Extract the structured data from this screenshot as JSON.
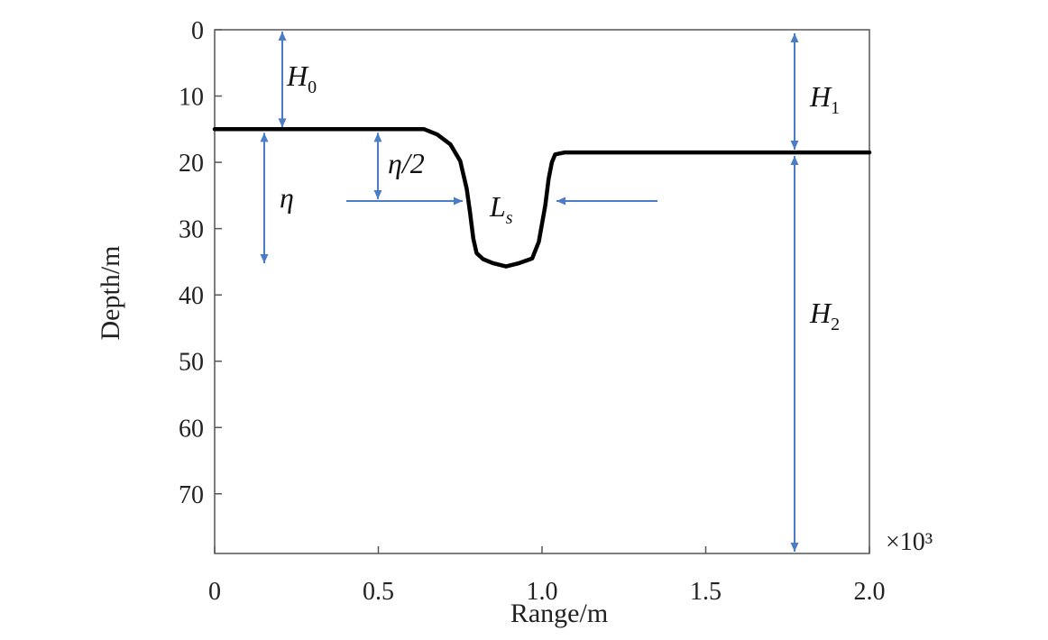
{
  "chart_data": {
    "type": "line",
    "title": "",
    "xlabel": "Range/m",
    "ylabel": "Depth/m",
    "x_multiplier": "×10³",
    "xlim": [
      0,
      2.0
    ],
    "ylim": [
      0,
      79
    ],
    "y_inverted": true,
    "grid": false,
    "x_ticks": [
      0,
      0.5,
      1.0,
      1.5,
      2.0
    ],
    "x_tick_labels": [
      "0",
      "0.5",
      "1.0",
      "1.5",
      "2.0"
    ],
    "y_ticks": [
      0,
      10,
      20,
      30,
      40,
      50,
      60,
      70
    ],
    "y_tick_labels": [
      "0",
      "10",
      "20",
      "30",
      "40",
      "50",
      "60",
      "70"
    ],
    "series": [
      {
        "color": "#000000",
        "x": [
          0,
          0.64,
          0.68,
          0.72,
          0.75,
          0.77,
          0.78,
          0.79,
          0.8,
          0.82,
          0.85,
          0.89,
          0.93,
          0.97,
          0.99,
          1.01,
          1.02,
          1.03,
          1.04,
          1.07,
          1.2,
          1.6,
          2.0
        ],
        "y": [
          15.0,
          15.0,
          15.8,
          17.3,
          19.8,
          24.0,
          27.5,
          31.5,
          33.7,
          34.6,
          35.2,
          35.7,
          35.2,
          34.5,
          32.0,
          26.5,
          22.5,
          20.0,
          18.8,
          18.5,
          18.5,
          18.5,
          18.5
        ]
      }
    ],
    "annotations": {
      "H0": {
        "main": "H",
        "sub": "0"
      },
      "H1": {
        "main": "H",
        "sub": "1"
      },
      "H2": {
        "main": "H",
        "sub": "2"
      },
      "eta": "η",
      "eta_half": "η/2",
      "Ls": {
        "main": "L",
        "sub": "s"
      }
    },
    "annotation_color": "#4a7cc7"
  }
}
